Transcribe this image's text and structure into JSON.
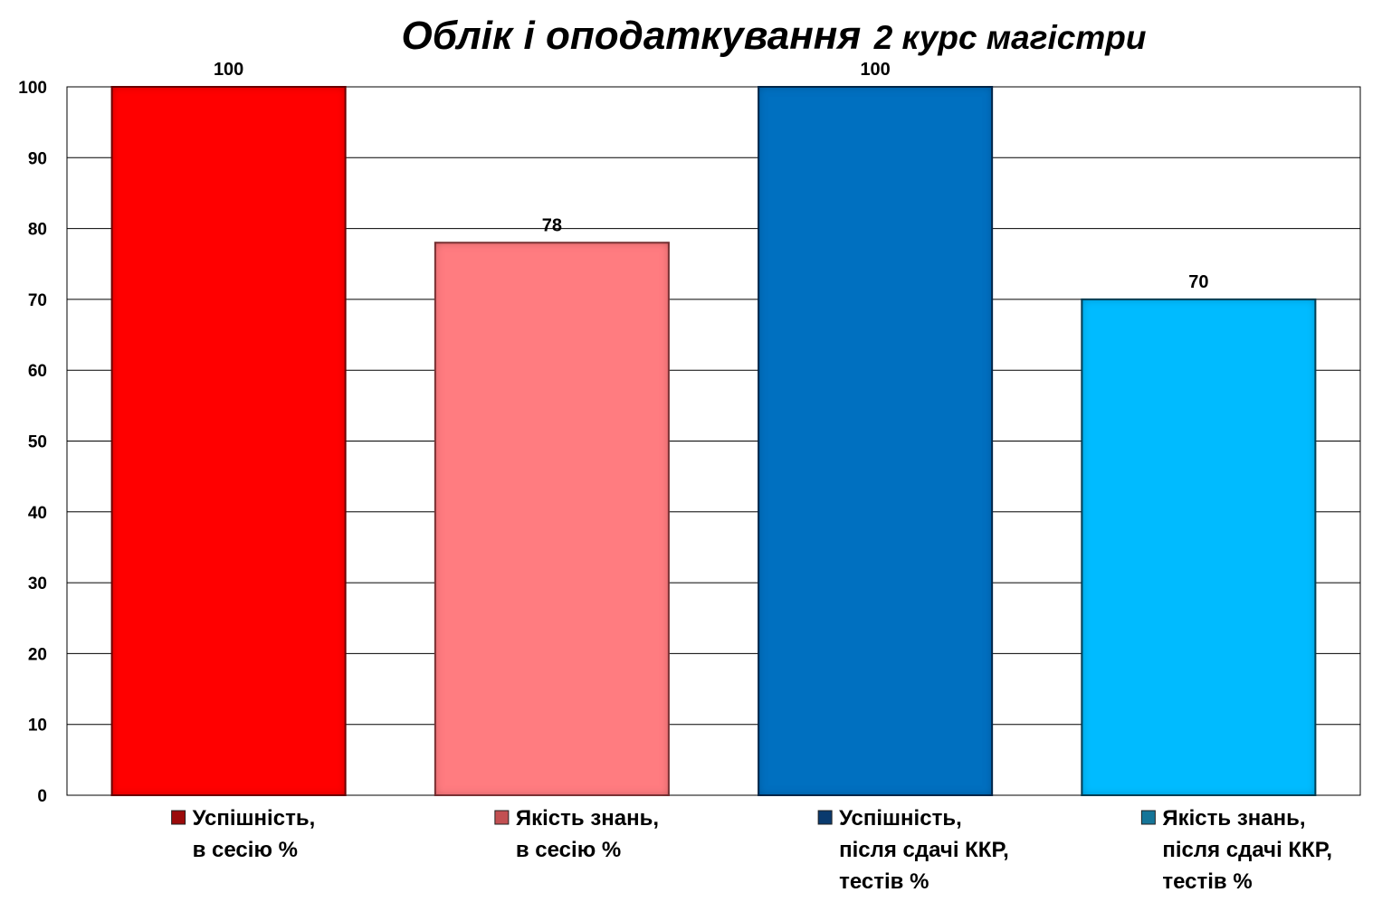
{
  "chart_data": {
    "type": "bar",
    "title": {
      "main": "Облік і оподаткування",
      "sub": "2 курс магістри"
    },
    "xlabel": "",
    "ylabel": "",
    "ylim": [
      0,
      100
    ],
    "yticks": [
      "0",
      "10",
      "20",
      "30",
      "40",
      "50",
      "60",
      "70",
      "80",
      "90",
      "100"
    ],
    "grid": true,
    "legend_position": "bottom",
    "series": [
      {
        "name_lines": [
          "Успішність,",
          "в сесію %"
        ],
        "value": 100,
        "value_label": "100",
        "color": "#FF0000",
        "border": "#7A0000",
        "legend_color": "#9B0A0A"
      },
      {
        "name_lines": [
          "Якість знань,",
          "в сесію %"
        ],
        "value": 78,
        "value_label": "78",
        "color": "#FF7C80",
        "border": "#8A3A3C",
        "legend_color": "#C25052"
      },
      {
        "name_lines": [
          "Успішність,",
          "після сдачі ККР,",
          "тестів %"
        ],
        "value": 100,
        "value_label": "100",
        "color": "#0070C0",
        "border": "#0A2E55",
        "legend_color": "#0A3A6E"
      },
      {
        "name_lines": [
          "Якість знань,",
          "після сдачі ККР,",
          "тестів %"
        ],
        "value": 70,
        "value_label": "70",
        "color": "#00BBFF",
        "border": "#0D4A60",
        "legend_color": "#157598"
      }
    ]
  }
}
